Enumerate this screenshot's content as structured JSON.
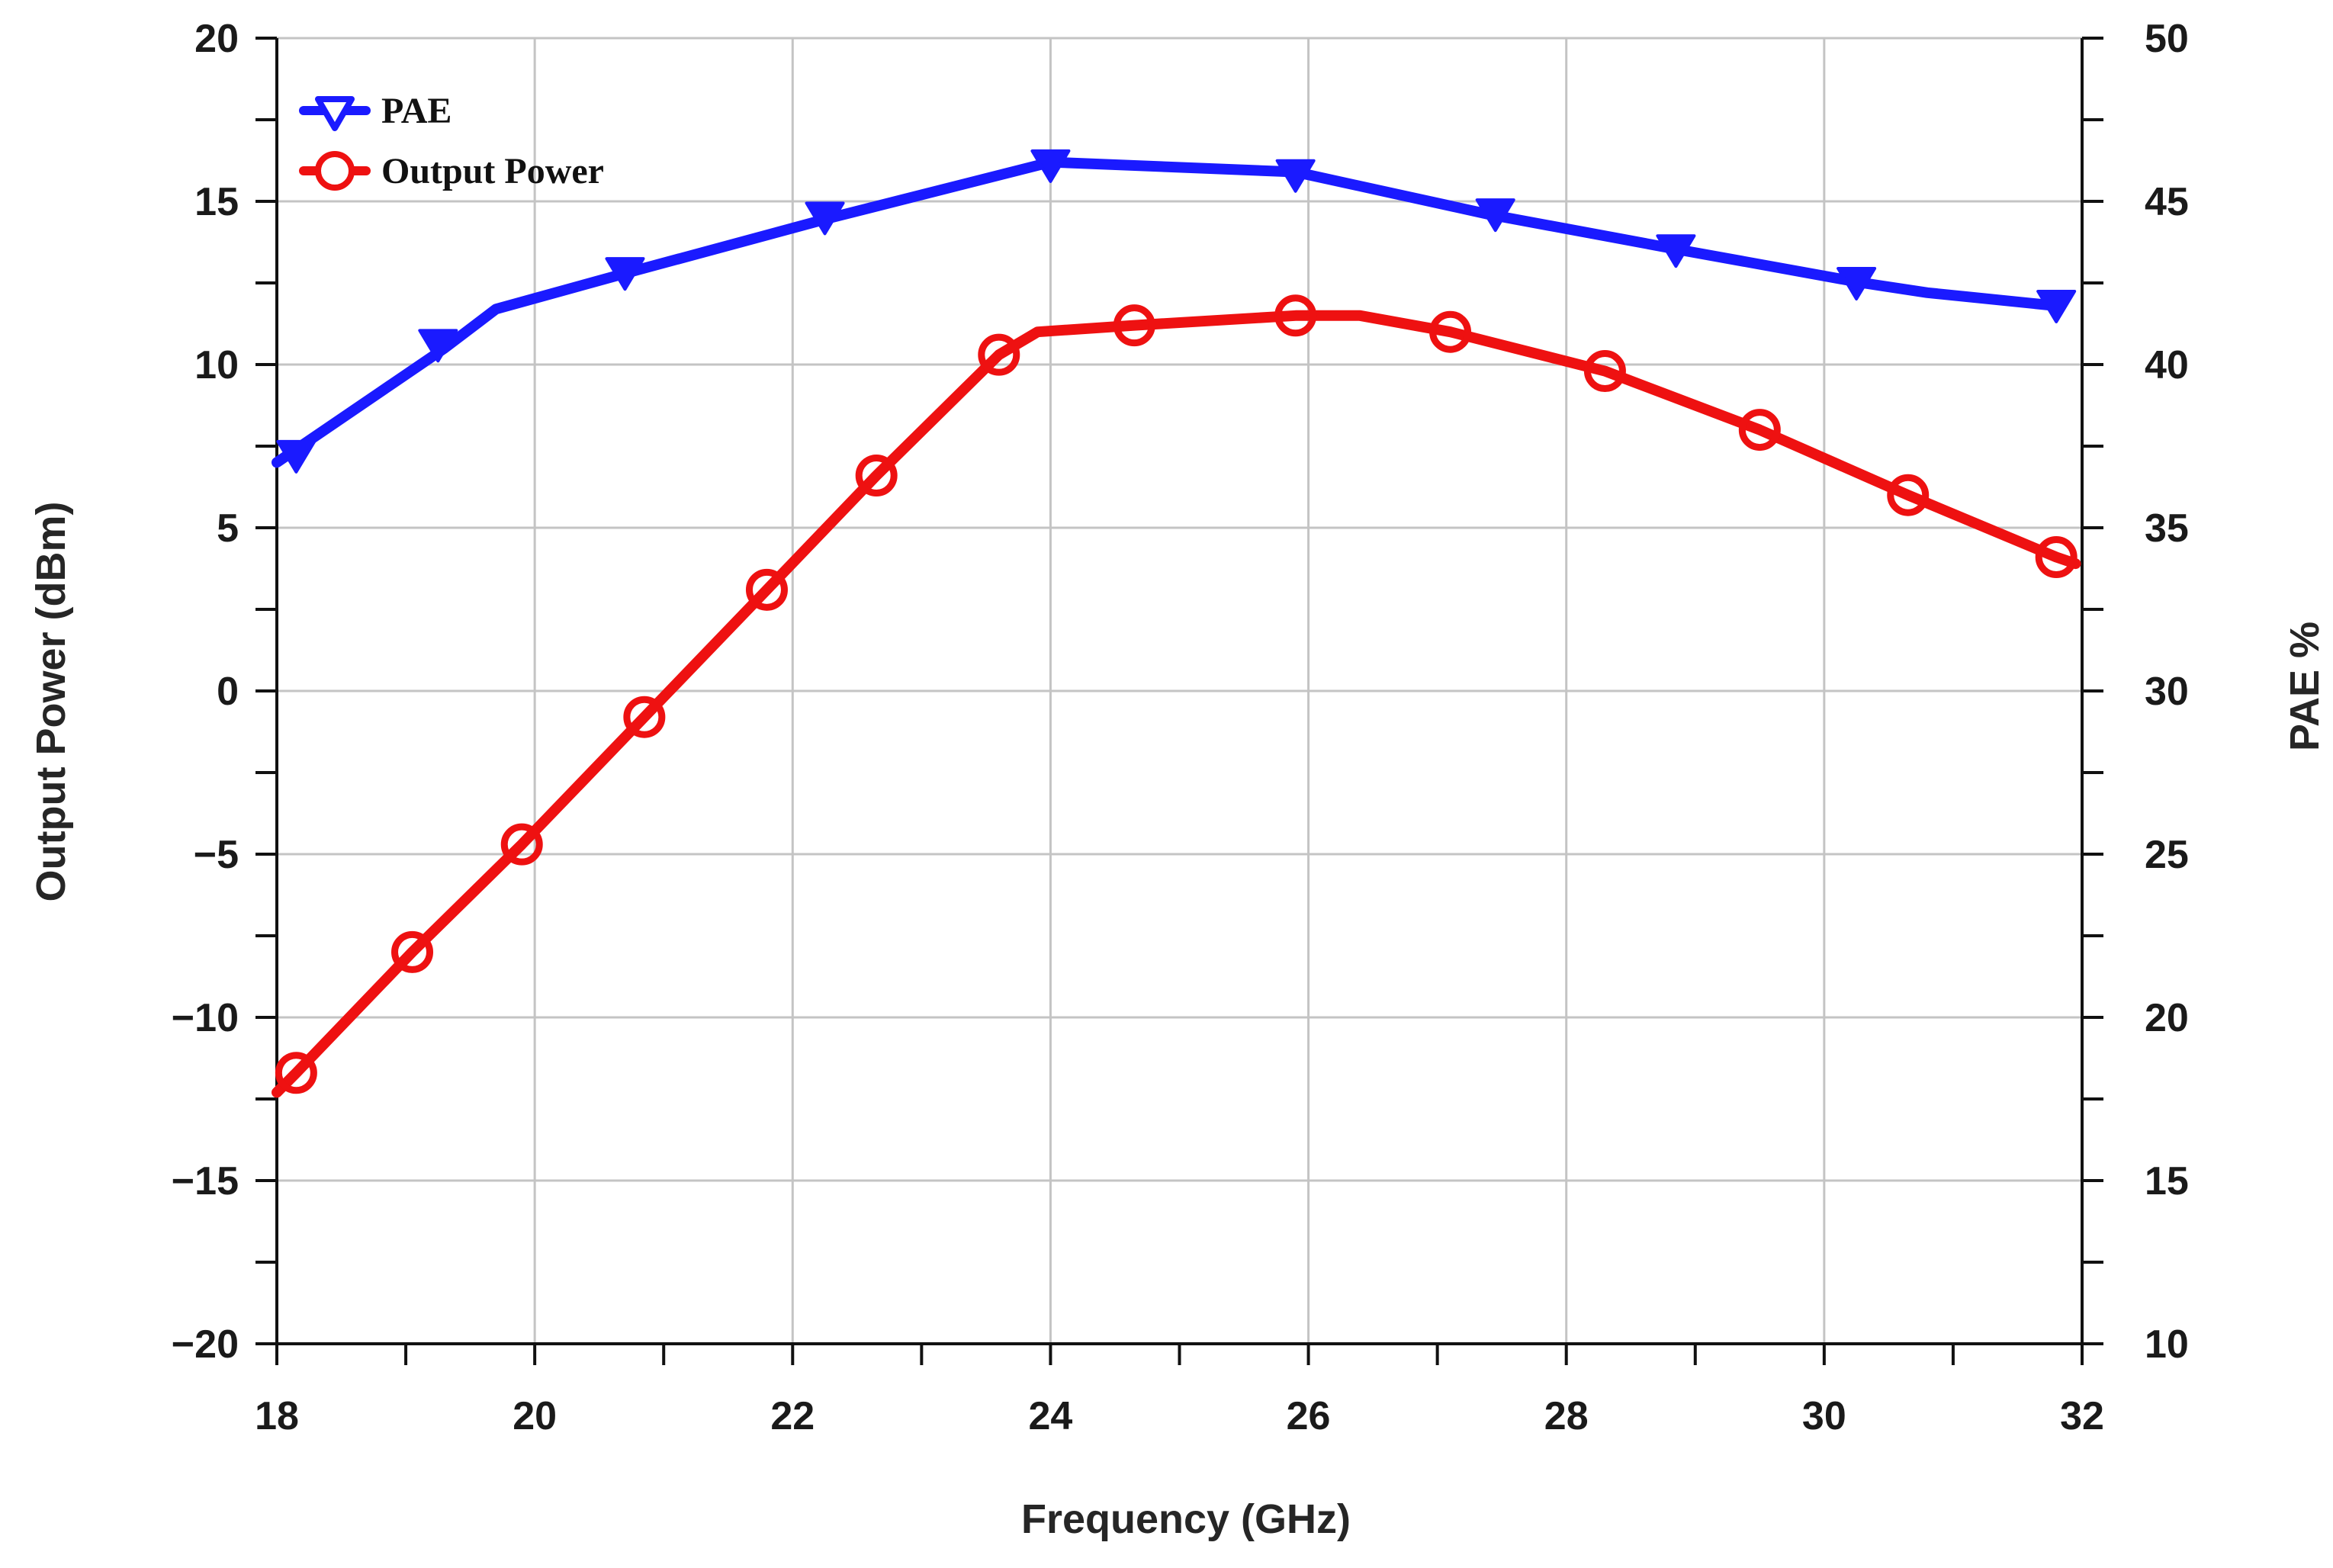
{
  "chart_data": {
    "type": "line",
    "title": "",
    "xlabel": "Frequency (GHz)",
    "ylabel": "Output Power (dBm)",
    "y2label": "PAE %",
    "xlim": [
      18,
      32
    ],
    "ylim": [
      -20,
      20
    ],
    "y2lim": [
      10,
      50
    ],
    "x_ticks": [
      "18",
      "20",
      "22",
      "24",
      "26",
      "28",
      "30",
      "32"
    ],
    "y_ticks": [
      "20",
      "15",
      "10",
      "5",
      "0",
      "−5",
      "−10",
      "−15",
      "−20"
    ],
    "y2_ticks": [
      "50",
      "45",
      "40",
      "35",
      "30",
      "25",
      "20",
      "15",
      "10"
    ],
    "grid": true,
    "legend_position": "top-left",
    "series": [
      {
        "name": "PAE",
        "axis": "right",
        "color": "#1a1aff",
        "marker": "triangle-down",
        "line_x": [
          18,
          19.3,
          19.7,
          20.8,
          22.3,
          24.0,
          25.9,
          27.4,
          28.9,
          30.3,
          30.8,
          31.8
        ],
        "line_y": [
          37.0,
          40.5,
          41.7,
          42.9,
          44.5,
          46.2,
          45.9,
          44.6,
          43.5,
          42.5,
          42.2,
          41.8
        ],
        "marker_x": [
          18.15,
          19.25,
          20.7,
          22.25,
          24.0,
          25.9,
          27.45,
          28.85,
          30.25,
          31.8
        ],
        "marker_y": [
          37.2,
          40.6,
          42.8,
          44.5,
          46.1,
          45.8,
          44.6,
          43.5,
          42.5,
          41.8
        ]
      },
      {
        "name": "Output Power",
        "axis": "left",
        "color": "#ee1111",
        "marker": "circle",
        "line_x": [
          18,
          18.15,
          19.05,
          19.9,
          20.85,
          21.8,
          22.65,
          23.6,
          23.9,
          24.65,
          25.9,
          26.4,
          27.1,
          28.3,
          29.5,
          30.65,
          31.8,
          31.95
        ],
        "line_y": [
          -12.3,
          -11.7,
          -8.0,
          -4.7,
          -0.8,
          3.1,
          6.6,
          10.3,
          11.0,
          11.2,
          11.5,
          11.5,
          11.0,
          9.8,
          8.0,
          6.0,
          4.1,
          3.9
        ],
        "marker_x": [
          18.15,
          19.05,
          19.9,
          20.85,
          21.8,
          22.65,
          23.6,
          24.65,
          25.9,
          27.1,
          28.3,
          29.5,
          30.65,
          31.8
        ],
        "marker_y": [
          -11.7,
          -8.0,
          -4.7,
          -0.8,
          3.1,
          6.6,
          10.3,
          11.2,
          11.5,
          11.0,
          9.8,
          8.0,
          6.0,
          4.1
        ]
      }
    ]
  }
}
